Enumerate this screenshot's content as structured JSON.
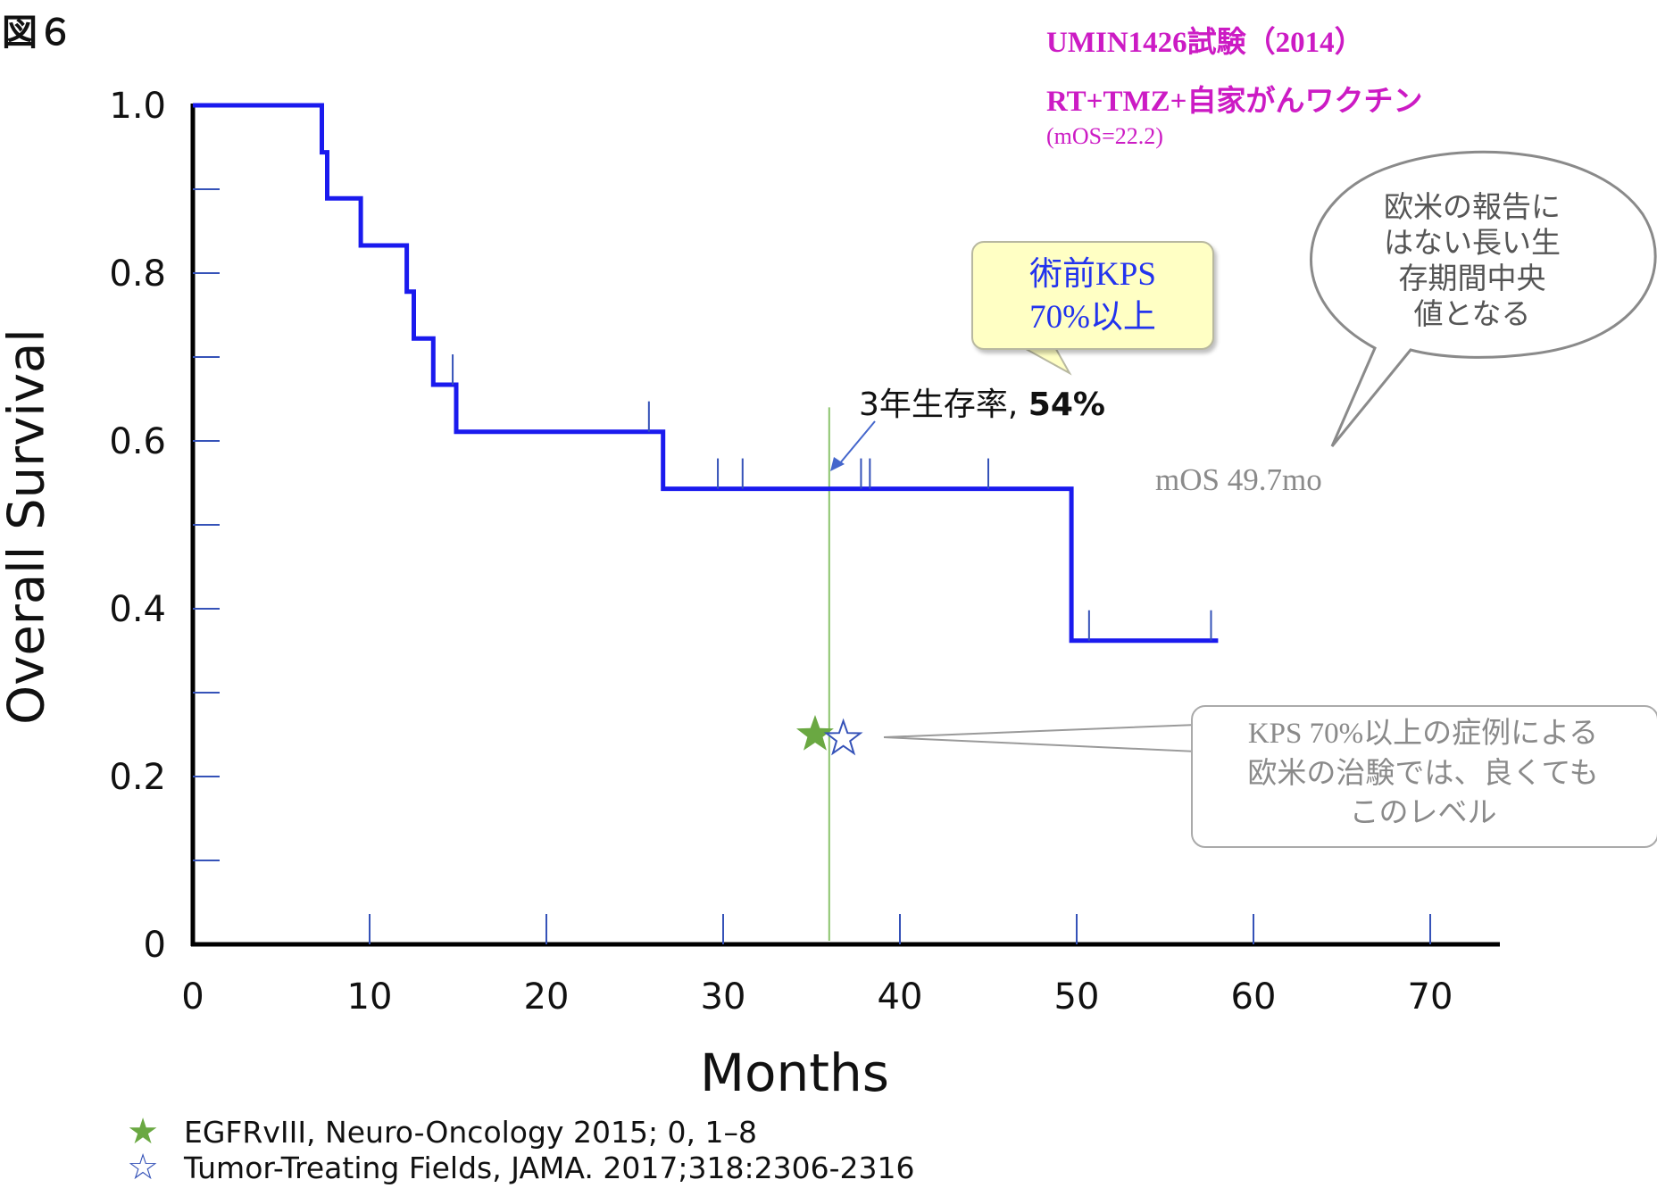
{
  "figure_label": "図６",
  "trial": {
    "title": "UMIN1426試験（2014）",
    "regimen": "RT+TMZ+自家がんワクチン",
    "mos": "(mOS=22.2)"
  },
  "annotations": {
    "bubble_lines": [
      "欧米の報告に",
      "はない長い生",
      "存期間中央",
      "値となる"
    ],
    "kps_box_lines": [
      "術前KPS",
      "70%以上"
    ],
    "survival_note_prefix": "3年生存率, ",
    "survival_note_value": "54%",
    "mos_label": "mOS 49.7mo",
    "callout_lines": [
      "KPS 70%以上の症例による",
      "欧米の治験では、良くても",
      "このレベル"
    ]
  },
  "legend": [
    {
      "label": "EGFRvIII, Neuro-Oncology 2015; 0, 1–8",
      "icon": "filled-star-icon",
      "color": "#6aa842"
    },
    {
      "label": "Tumor-Treating Fields, JAMA. 2017;318:2306-2316",
      "icon": "hollow-star-icon",
      "color": "#3552b8"
    }
  ],
  "colors": {
    "km_curve": "#1a1aee",
    "censor_ticks": "#3552b8",
    "reference_line": "#8cc46c",
    "green_star": "#6aa842",
    "hollow_star": "#3552b8"
  },
  "chart_data": {
    "type": "line",
    "xlabel": "Months",
    "ylabel": "Overall Survival",
    "xlim": [
      0,
      74
    ],
    "ylim": [
      0,
      1.0
    ],
    "x_ticks": [
      0,
      10,
      20,
      30,
      40,
      50,
      60,
      70
    ],
    "x_tick_labels": [
      "0",
      "10",
      "20",
      "30",
      "40",
      "50",
      "60",
      "70"
    ],
    "y_ticks": [
      0,
      0.2,
      0.4,
      0.6,
      0.8,
      1.0
    ],
    "y_tick_labels": [
      "0",
      "0.2",
      "0.4",
      "0.6",
      "0.8",
      "1.0"
    ],
    "grid": false,
    "series": [
      {
        "step_points": [
          [
            0,
            1.0
          ],
          [
            7.3,
            1.0
          ],
          [
            7.3,
            0.944
          ],
          [
            7.6,
            0.944
          ],
          [
            7.6,
            0.889
          ],
          [
            9.5,
            0.889
          ],
          [
            9.5,
            0.833
          ],
          [
            12.1,
            0.833
          ],
          [
            12.1,
            0.778
          ],
          [
            12.5,
            0.778
          ],
          [
            12.5,
            0.722
          ],
          [
            13.6,
            0.722
          ],
          [
            13.6,
            0.667
          ],
          [
            14.9,
            0.667
          ],
          [
            14.9,
            0.611
          ],
          [
            26.6,
            0.611
          ],
          [
            26.6,
            0.543
          ],
          [
            49.7,
            0.543
          ],
          [
            49.7,
            0.362
          ],
          [
            58.0,
            0.362
          ]
        ],
        "censored": [
          [
            14.7,
            0.667
          ],
          [
            25.8,
            0.611
          ],
          [
            29.7,
            0.543
          ],
          [
            31.1,
            0.543
          ],
          [
            37.8,
            0.543
          ],
          [
            38.3,
            0.543
          ],
          [
            45.0,
            0.543
          ],
          [
            50.7,
            0.362
          ],
          [
            57.6,
            0.362
          ]
        ]
      }
    ],
    "reference_line_x": 36,
    "comparison_points": [
      {
        "x": 35.2,
        "y": 0.25,
        "style": "filled-star",
        "legend_index": 0
      },
      {
        "x": 36.8,
        "y": 0.245,
        "style": "hollow-star",
        "legend_index": 1
      }
    ]
  }
}
